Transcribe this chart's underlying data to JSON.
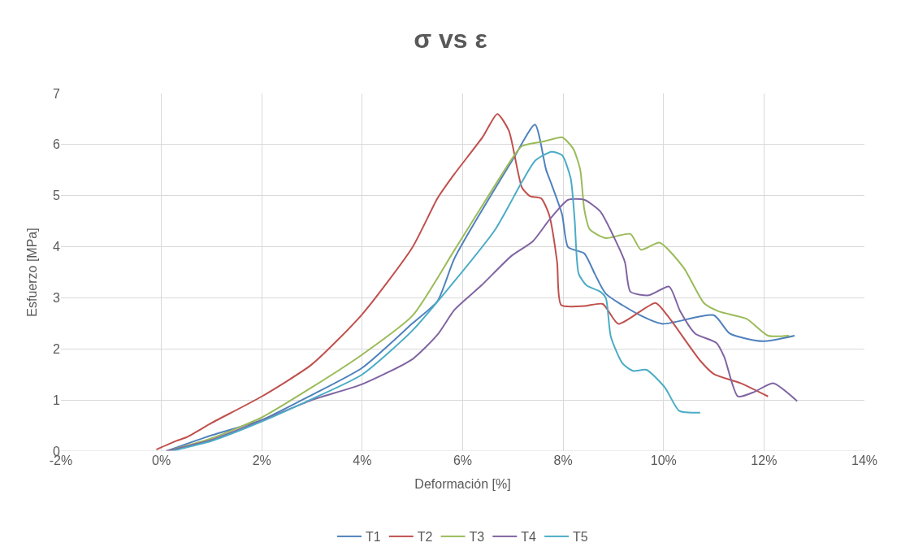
{
  "chart_data": {
    "type": "line",
    "title": "σ vs ε",
    "xlabel": "Deformación [%]",
    "ylabel": "Esfuerzo [MPa]",
    "xlim": [
      -2,
      14
    ],
    "xticks": [
      {
        "value": -2,
        "label": "-2%"
      },
      {
        "value": 0,
        "label": "0%"
      },
      {
        "value": 2,
        "label": "2%"
      },
      {
        "value": 4,
        "label": "4%"
      },
      {
        "value": 6,
        "label": "6%"
      },
      {
        "value": 8,
        "label": "8%"
      },
      {
        "value": 10,
        "label": "10%"
      },
      {
        "value": 12,
        "label": "12%"
      },
      {
        "value": 14,
        "label": "14%"
      }
    ],
    "ylim": [
      0,
      7
    ],
    "yticks": [
      0,
      1,
      2,
      3,
      4,
      5,
      6,
      7
    ],
    "grid": true,
    "legend": "bottom",
    "marker": "none",
    "line_style": "solid",
    "series": [
      {
        "name": "T1",
        "color": "#4f81bd",
        "x": [
          0.1,
          1,
          2,
          3,
          4,
          5,
          5.5,
          5.84,
          7,
          7.44,
          7.66,
          7.77,
          7.98,
          8.1,
          8.42,
          8.63,
          8.85,
          9.55,
          9.98,
          11.0,
          11.32,
          11.97,
          12.61
        ],
        "values": [
          0,
          0.31,
          0.61,
          1.1,
          1.63,
          2.5,
          2.94,
          3.78,
          5.71,
          6.39,
          5.51,
          5.22,
          4.63,
          3.99,
          3.87,
          3.47,
          3.08,
          2.65,
          2.49,
          2.66,
          2.3,
          2.15,
          2.26
        ]
      },
      {
        "name": "T2",
        "color": "#c0504d",
        "x": [
          -0.1,
          0.3,
          0.5,
          1,
          2,
          3,
          4,
          5,
          5.5,
          5.84,
          6.4,
          6.69,
          6.92,
          7.18,
          7.34,
          7.56,
          7.72,
          7.88,
          7.96,
          8.42,
          8.79,
          9.1,
          9.84,
          10.08,
          10.73,
          11.0,
          11.53,
          12.08
        ],
        "values": [
          0.03,
          0.2,
          0.27,
          0.55,
          1.07,
          1.7,
          2.68,
          3.99,
          4.95,
          5.43,
          6.15,
          6.6,
          6.27,
          5.16,
          4.99,
          4.95,
          4.63,
          3.7,
          2.86,
          2.84,
          2.88,
          2.49,
          2.9,
          2.65,
          1.77,
          1.51,
          1.33,
          1.07
        ]
      },
      {
        "name": "T3",
        "color": "#9bbb59",
        "x": [
          0.1,
          1,
          2,
          3,
          4,
          5,
          5.84,
          7,
          7.18,
          7.61,
          7.98,
          8.2,
          8.34,
          8.42,
          8.53,
          8.85,
          9.34,
          9.55,
          9.92,
          10.4,
          10.81,
          11.11,
          11.65,
          12.08,
          12.5
        ],
        "values": [
          0,
          0.25,
          0.66,
          1.25,
          1.89,
          2.65,
          3.94,
          5.75,
          5.97,
          6.06,
          6.14,
          5.92,
          5.51,
          4.74,
          4.34,
          4.17,
          4.25,
          3.94,
          4.08,
          3.59,
          2.89,
          2.73,
          2.59,
          2.26,
          2.26
        ]
      },
      {
        "name": "T4",
        "color": "#8064a2",
        "x": [
          0.1,
          1,
          2,
          3,
          4,
          5,
          5.5,
          5.84,
          6.37,
          6.97,
          7.4,
          7.72,
          8.1,
          8.42,
          8.74,
          9.02,
          9.23,
          9.34,
          9.71,
          10.11,
          10.33,
          10.63,
          11.05,
          11.21,
          11.48,
          11.81,
          12.18,
          12.66
        ],
        "values": [
          0,
          0.22,
          0.6,
          1.0,
          1.31,
          1.8,
          2.28,
          2.77,
          3.24,
          3.82,
          4.11,
          4.52,
          4.92,
          4.92,
          4.69,
          4.17,
          3.7,
          3.12,
          3.05,
          3.22,
          2.74,
          2.3,
          2.12,
          1.84,
          1.07,
          1.16,
          1.33,
          0.98
        ]
      },
      {
        "name": "T5",
        "color": "#4bacc6",
        "x": [
          0.2,
          1,
          2,
          3,
          4,
          5,
          5.84,
          6.65,
          7.18,
          7.45,
          7.77,
          7.98,
          8.15,
          8.23,
          8.31,
          8.47,
          8.74,
          8.85,
          8.95,
          9.18,
          9.39,
          9.66,
          10.03,
          10.31,
          10.73
        ],
        "values": [
          0,
          0.2,
          0.58,
          1.02,
          1.5,
          2.36,
          3.33,
          4.34,
          5.27,
          5.69,
          5.86,
          5.79,
          5.34,
          4.52,
          3.47,
          3.24,
          3.12,
          3.0,
          2.24,
          1.72,
          1.57,
          1.59,
          1.24,
          0.79,
          0.75
        ]
      }
    ]
  }
}
